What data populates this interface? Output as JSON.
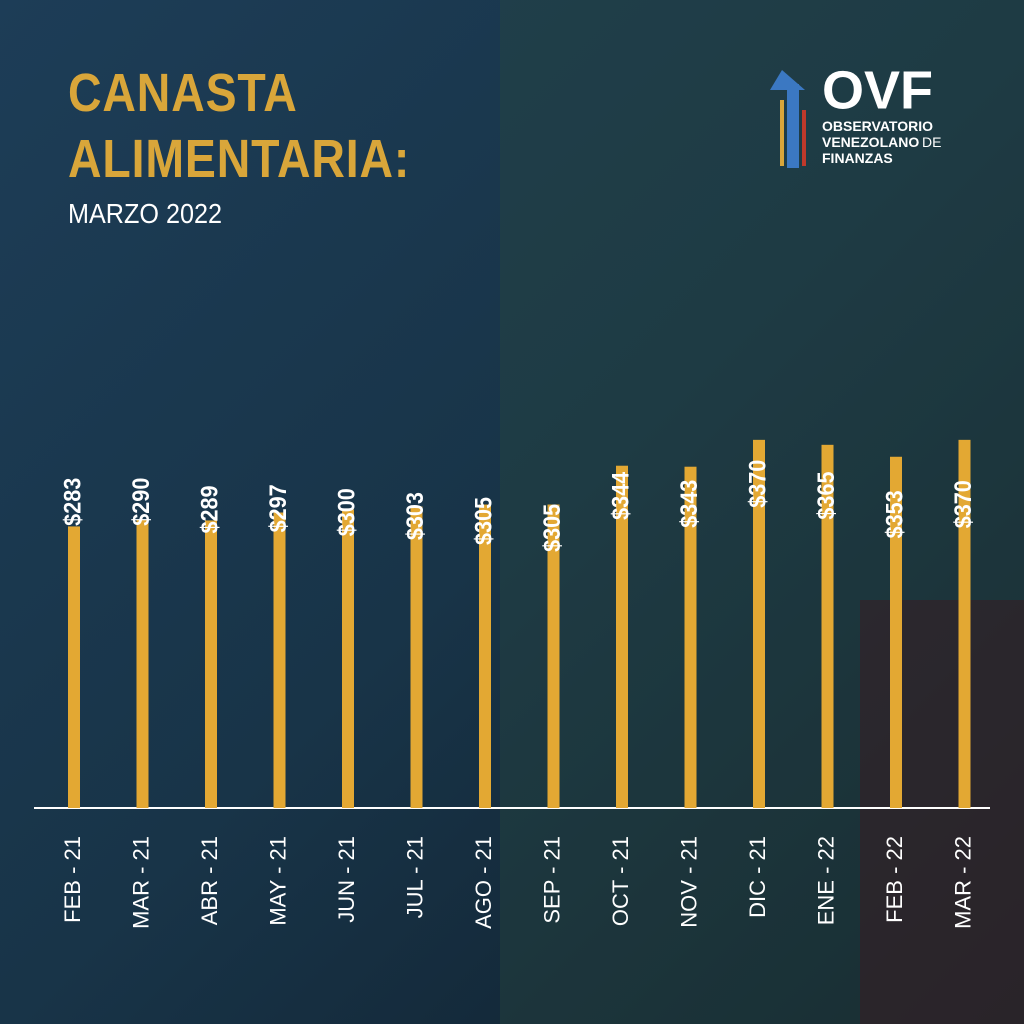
{
  "chart_data": {
    "type": "bar",
    "title": "CANASTA ALIMENTARIA:",
    "subtitle": "MARZO 2022",
    "logo": {
      "name": "OVF",
      "lines": [
        "OBSERVATORIO",
        "VENEZOLANO",
        "DE",
        "FINANZAS"
      ]
    },
    "categories": [
      "FEB - 21",
      "MAR - 21",
      "ABR - 21",
      "MAY - 21",
      "JUN - 21",
      "JUL - 21",
      "AGO - 21",
      "SEP - 21",
      "OCT - 21",
      "NOV - 21",
      "DIC - 21",
      "ENE - 22",
      "FEB - 22",
      "MAR - 22"
    ],
    "values": [
      283,
      290,
      289,
      297,
      300,
      303,
      305,
      305,
      344,
      343,
      370,
      365,
      353,
      370
    ],
    "value_labels": [
      "$283",
      "$290",
      "$289",
      "$297",
      "$300",
      "$303",
      "$305",
      "$305",
      "$344",
      "$343",
      "$370",
      "$365",
      "$353",
      "$370"
    ],
    "color": "#e3a833"
  }
}
